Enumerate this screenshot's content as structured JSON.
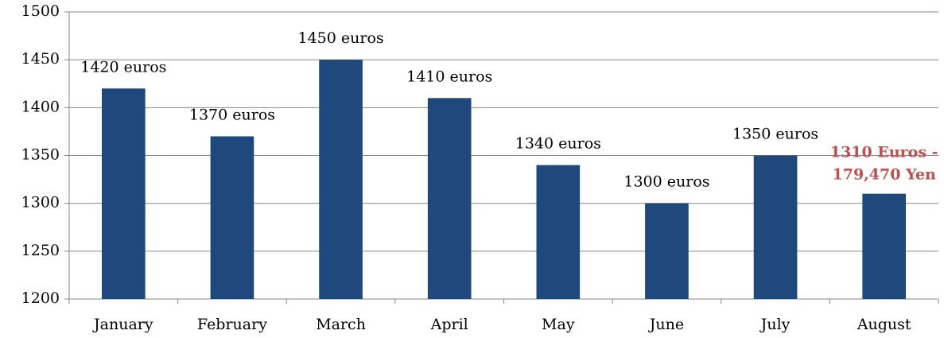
{
  "chart_data": {
    "type": "bar",
    "categories": [
      "January",
      "February",
      "March",
      "April",
      "May",
      "June",
      "July",
      "August"
    ],
    "values": [
      1420,
      1370,
      1450,
      1410,
      1340,
      1300,
      1350,
      1310
    ],
    "value_labels": [
      "1420 euros",
      "1370 euros",
      "1450 euros",
      "1410 euros",
      "1340 euros",
      "1300 euros",
      "1350 euros",
      "1310 Euros - 179,470 Yen"
    ],
    "value_label_colors": [
      "#000000",
      "#000000",
      "#000000",
      "#000000",
      "#000000",
      "#000000",
      "#000000",
      "#c0504d"
    ],
    "value_label_weights": [
      "normal",
      "normal",
      "normal",
      "normal",
      "normal",
      "normal",
      "normal",
      "bold"
    ],
    "color": "#1f497d",
    "ylim": [
      1200,
      1500
    ],
    "yticks": [
      1200,
      1250,
      1300,
      1350,
      1400,
      1450,
      1500
    ],
    "grid": true
  }
}
